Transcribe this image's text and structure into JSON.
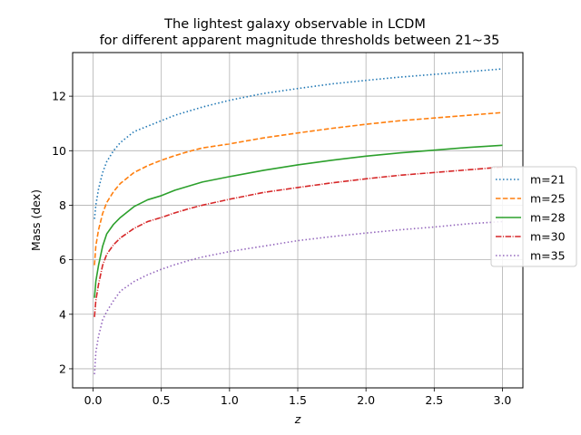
{
  "chart_data": {
    "type": "line",
    "title_line1": "The lightest galaxy observable in LCDM",
    "title_line2": "for different apparent magnitude thresholds between 21~35",
    "xlabel": "z",
    "ylabel": "Mass (dex)",
    "xlim": [
      -0.15,
      3.15
    ],
    "ylim": [
      1.3,
      13.6
    ],
    "xticks": [
      0.0,
      0.5,
      1.0,
      1.5,
      2.0,
      2.5,
      3.0
    ],
    "xtick_labels": [
      "0.0",
      "0.5",
      "1.0",
      "1.5",
      "2.0",
      "2.5",
      "3.0"
    ],
    "yticks": [
      2,
      4,
      6,
      8,
      10,
      12
    ],
    "ytick_labels": [
      "2",
      "4",
      "6",
      "8",
      "10",
      "12"
    ],
    "grid": true,
    "legend_position": "right",
    "x": [
      0.01,
      0.02,
      0.04,
      0.07,
      0.1,
      0.15,
      0.2,
      0.3,
      0.4,
      0.5,
      0.6,
      0.7,
      0.8,
      1.0,
      1.25,
      1.5,
      1.75,
      2.0,
      2.25,
      2.5,
      2.75,
      3.0
    ],
    "series": [
      {
        "name": "m=21",
        "color": "#1f77b4",
        "dash": "dotted",
        "values": [
          7.5,
          8.0,
          8.6,
          9.2,
          9.6,
          10.0,
          10.3,
          10.7,
          10.9,
          11.1,
          11.3,
          11.45,
          11.6,
          11.85,
          12.1,
          12.28,
          12.45,
          12.58,
          12.7,
          12.8,
          12.9,
          13.0
        ]
      },
      {
        "name": "m=25",
        "color": "#ff7f0e",
        "dash": "dashed",
        "values": [
          5.8,
          6.5,
          7.1,
          7.7,
          8.1,
          8.5,
          8.8,
          9.2,
          9.45,
          9.65,
          9.82,
          9.97,
          10.1,
          10.25,
          10.47,
          10.65,
          10.82,
          10.97,
          11.1,
          11.2,
          11.3,
          11.4
        ]
      },
      {
        "name": "m=28",
        "color": "#2ca02c",
        "dash": "solid",
        "values": [
          4.6,
          5.2,
          5.8,
          6.5,
          6.95,
          7.3,
          7.55,
          7.95,
          8.2,
          8.35,
          8.55,
          8.7,
          8.85,
          9.05,
          9.28,
          9.48,
          9.65,
          9.8,
          9.92,
          10.02,
          10.12,
          10.2
        ]
      },
      {
        "name": "m=30",
        "color": "#d62728",
        "dash": "dashdot",
        "values": [
          3.9,
          4.5,
          5.1,
          5.8,
          6.2,
          6.55,
          6.8,
          7.15,
          7.4,
          7.55,
          7.72,
          7.87,
          8.0,
          8.22,
          8.47,
          8.65,
          8.82,
          8.97,
          9.1,
          9.2,
          9.3,
          9.4
        ]
      },
      {
        "name": "m=35",
        "color": "#9467bd",
        "dash": "dotted",
        "values": [
          1.8,
          2.6,
          3.2,
          3.8,
          4.1,
          4.5,
          4.85,
          5.2,
          5.45,
          5.65,
          5.82,
          5.97,
          6.1,
          6.3,
          6.5,
          6.7,
          6.85,
          6.98,
          7.1,
          7.2,
          7.32,
          7.4
        ]
      }
    ]
  }
}
